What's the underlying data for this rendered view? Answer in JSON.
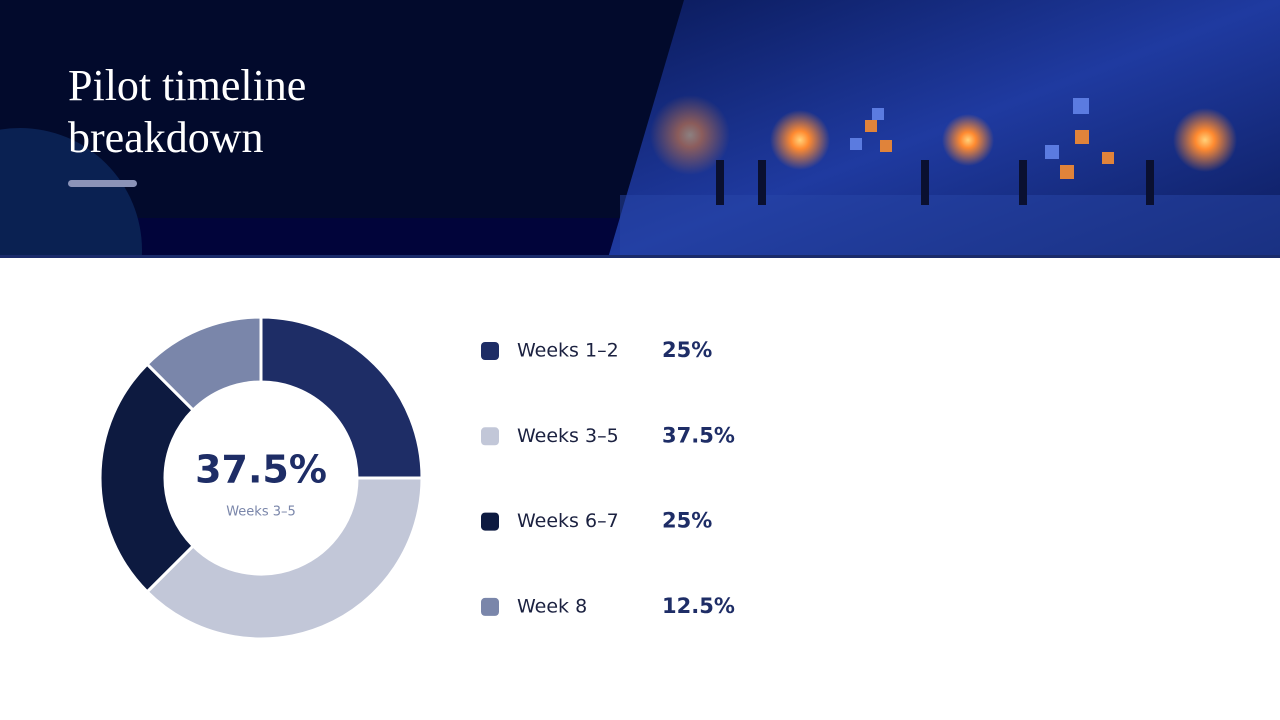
{
  "chart_data": {
    "type": "donut",
    "title": "Pilot timeline breakdown",
    "categories": [
      "Weeks 1–2",
      "Weeks 3–5",
      "Weeks 6–7",
      "Week 8"
    ],
    "values": [
      25,
      37.5,
      25,
      12.5
    ],
    "value_labels": [
      "25%",
      "37.5%",
      "25%",
      "12.5%"
    ],
    "colors": [
      "#1e2d66",
      "#c2c7d8",
      "#0d1a40",
      "#7a86aa"
    ]
  }
}
